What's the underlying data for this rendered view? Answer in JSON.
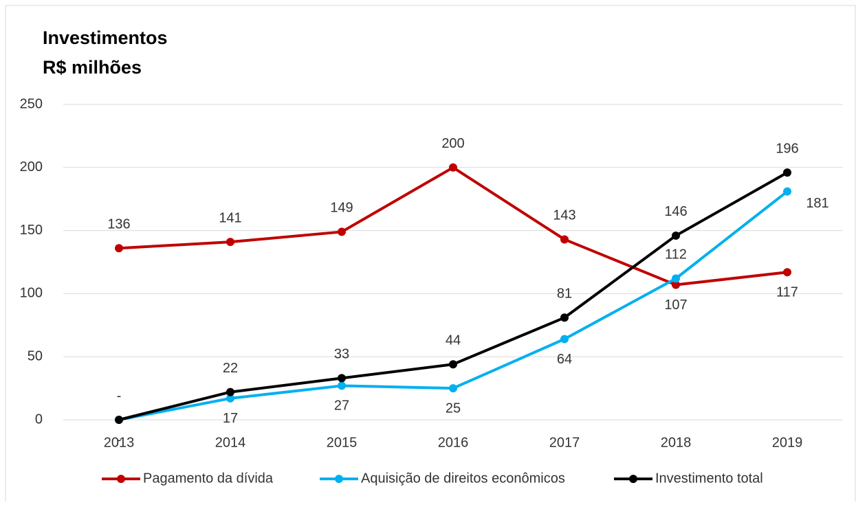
{
  "chart_data": {
    "type": "line",
    "title": [
      "Investimentos",
      "R$ milhões"
    ],
    "categories": [
      "2013",
      "2014",
      "2015",
      "2016",
      "2017",
      "2018",
      "2019"
    ],
    "series": [
      {
        "name": "Pagamento da dívida",
        "color": "#c00000",
        "values": [
          136,
          141,
          149,
          200,
          143,
          107,
          117
        ]
      },
      {
        "name": "Aquisição de direitos econômicos",
        "color": "#00b0f0",
        "values": [
          0,
          17,
          27,
          25,
          64,
          112,
          181
        ],
        "value_labels": [
          "-",
          "17",
          "27",
          "25",
          "64",
          "112",
          "181"
        ]
      },
      {
        "name": "Investimento total",
        "color": "#000000",
        "values": [
          0,
          22,
          33,
          44,
          81,
          146,
          196
        ],
        "value_labels": [
          "-",
          "22",
          "33",
          "44",
          "81",
          "146",
          "196"
        ]
      }
    ],
    "ylim": [
      0,
      250
    ],
    "yticks": [
      0,
      50,
      100,
      150,
      200,
      250
    ],
    "grid": true,
    "legend": "bottom"
  }
}
